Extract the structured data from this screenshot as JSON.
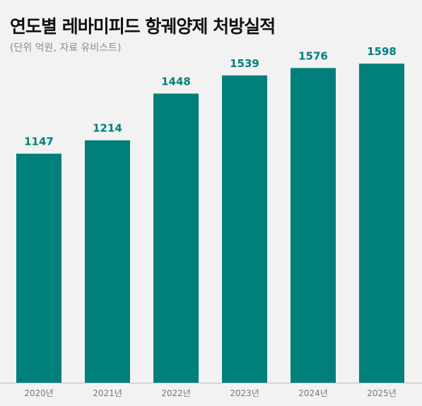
{
  "chart_data": {
    "type": "bar",
    "title": "연도별 레바미피드 항궤양제 처방실적",
    "subtitle": "(단위 억원, 자료 유비스트)",
    "categories": [
      "2020년",
      "2021년",
      "2022년",
      "2023년",
      "2024년",
      "2025년"
    ],
    "values": [
      1147,
      1214,
      1448,
      1539,
      1576,
      1598
    ],
    "ylim": [
      0,
      1800
    ],
    "grid": false,
    "legend": "none",
    "colors": {
      "bar": "#007f7b",
      "data_label": "#007f7b",
      "title": "#111111",
      "subtitle": "#8a8a8a",
      "tick_label": "#777777",
      "baseline": "#bfbfbf"
    }
  }
}
